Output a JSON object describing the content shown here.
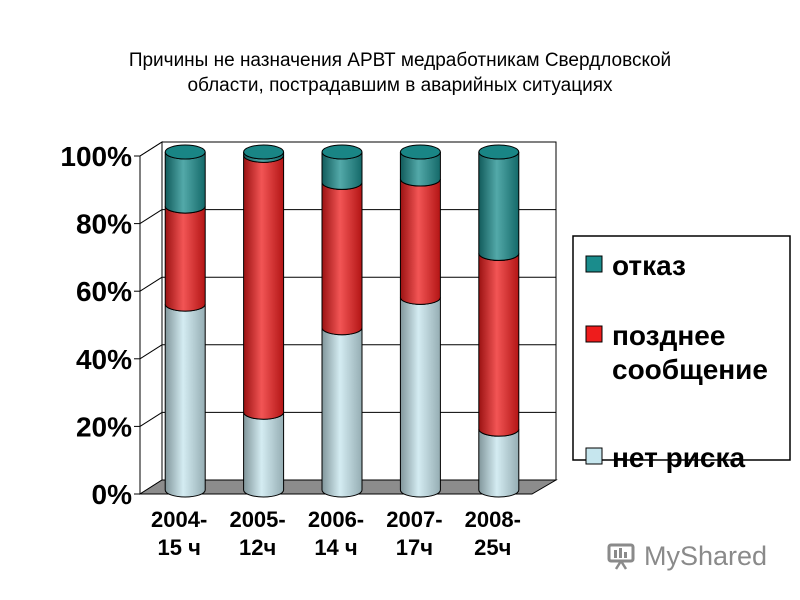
{
  "chart_data": {
    "type": "bar",
    "stacked": true,
    "percent": true,
    "title_lines": [
      "Причины не назначения АРВТ медработникам Свердловской",
      "области, пострадавшим в аварийных ситуациях"
    ],
    "categories": [
      [
        "2004-",
        "15 ч"
      ],
      [
        "2005-",
        "12ч"
      ],
      [
        "2006-",
        "14 ч"
      ],
      [
        "2007-",
        "17ч"
      ],
      [
        "2008-",
        "25ч"
      ]
    ],
    "series": [
      {
        "name": "нет риска",
        "color": "#c6e6ee",
        "values": [
          55,
          23,
          48,
          57,
          18
        ]
      },
      {
        "name": "позднее сообщение",
        "color": "#ee1c1c",
        "values": [
          29,
          76,
          43,
          35,
          52
        ]
      },
      {
        "name": "отказ",
        "color": "#1a8c8c",
        "values": [
          16,
          1,
          9,
          8,
          30
        ]
      }
    ],
    "legend_order": [
      "отказ",
      "позднее сообщение",
      "нет риска"
    ],
    "legend": {
      "position": "right"
    },
    "ylim": [
      0,
      100
    ],
    "yticks": [
      "0%",
      "20%",
      "40%",
      "60%",
      "80%",
      "100%"
    ],
    "grid": true
  },
  "watermark": {
    "text": "MyShared",
    "icon": "presentation-board-icon"
  }
}
